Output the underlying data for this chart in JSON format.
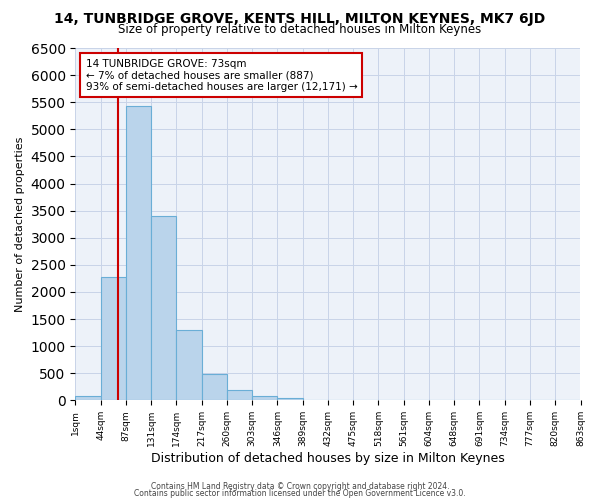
{
  "title": "14, TUNBRIDGE GROVE, KENTS HILL, MILTON KEYNES, MK7 6JD",
  "subtitle": "Size of property relative to detached houses in Milton Keynes",
  "xlabel": "Distribution of detached houses by size in Milton Keynes",
  "ylabel": "Number of detached properties",
  "bin_labels": [
    "1sqm",
    "44sqm",
    "87sqm",
    "131sqm",
    "174sqm",
    "217sqm",
    "260sqm",
    "303sqm",
    "346sqm",
    "389sqm",
    "432sqm",
    "475sqm",
    "518sqm",
    "561sqm",
    "604sqm",
    "648sqm",
    "691sqm",
    "734sqm",
    "777sqm",
    "820sqm",
    "863sqm"
  ],
  "counts": [
    80,
    2270,
    5430,
    3400,
    1300,
    480,
    200,
    80,
    40,
    15,
    8,
    4,
    0,
    0,
    0,
    0,
    0,
    0,
    0,
    0
  ],
  "bar_color": "#bad4eb",
  "bar_edge_color": "#6aaed6",
  "vline_bin": 1,
  "vline_color": "#cc0000",
  "annotation_text": "14 TUNBRIDGE GROVE: 73sqm\n← 7% of detached houses are smaller (887)\n93% of semi-detached houses are larger (12,171) →",
  "annotation_box_color": "#ffffff",
  "annotation_box_edge": "#cc0000",
  "ylim": [
    0,
    6500
  ],
  "yticks": [
    0,
    500,
    1000,
    1500,
    2000,
    2500,
    3000,
    3500,
    4000,
    4500,
    5000,
    5500,
    6000,
    6500
  ],
  "grid_color": "#c8d4e8",
  "bg_color": "#edf2f9",
  "footer1": "Contains HM Land Registry data © Crown copyright and database right 2024.",
  "footer2": "Contains public sector information licensed under the Open Government Licence v3.0."
}
